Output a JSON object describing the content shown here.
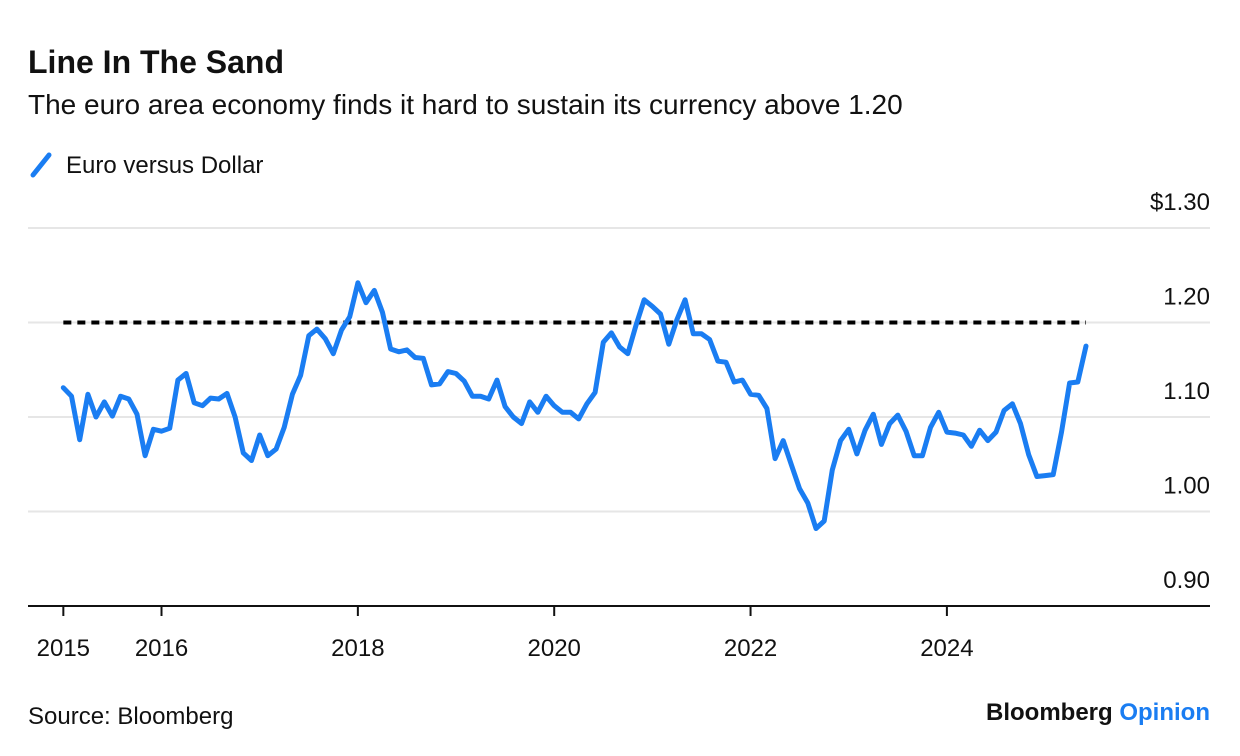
{
  "chart_data": {
    "type": "line",
    "title": "Line In The Sand",
    "subtitle": "The euro area economy finds it hard to sustain its currency above 1.20",
    "source": "Source: Bloomberg",
    "brand": [
      "Bloomberg",
      "Opinion"
    ],
    "x": [
      2015,
      2015.083,
      2015.167,
      2015.25,
      2015.333,
      2015.417,
      2015.5,
      2015.583,
      2015.667,
      2015.75,
      2015.833,
      2015.917,
      2016,
      2016.083,
      2016.167,
      2016.25,
      2016.333,
      2016.417,
      2016.5,
      2016.583,
      2016.667,
      2016.75,
      2016.833,
      2016.917,
      2017,
      2017.083,
      2017.167,
      2017.25,
      2017.333,
      2017.417,
      2017.5,
      2017.583,
      2017.667,
      2017.75,
      2017.833,
      2017.917,
      2018,
      2018.083,
      2018.167,
      2018.25,
      2018.333,
      2018.417,
      2018.5,
      2018.583,
      2018.667,
      2018.75,
      2018.833,
      2018.917,
      2019,
      2019.083,
      2019.167,
      2019.25,
      2019.333,
      2019.417,
      2019.5,
      2019.583,
      2019.667,
      2019.75,
      2019.833,
      2019.917,
      2020,
      2020.083,
      2020.167,
      2020.25,
      2020.333,
      2020.417,
      2020.5,
      2020.583,
      2020.667,
      2020.75,
      2020.833,
      2020.917,
      2021,
      2021.083,
      2021.167,
      2021.25,
      2021.333,
      2021.417,
      2021.5,
      2021.583,
      2021.667,
      2021.75,
      2021.833,
      2021.917,
      2022,
      2022.083,
      2022.167,
      2022.25,
      2022.333,
      2022.417,
      2022.5,
      2022.583,
      2022.667,
      2022.75,
      2022.833,
      2022.917,
      2023,
      2023.083,
      2023.167,
      2023.25,
      2023.333,
      2023.417,
      2023.5,
      2023.583,
      2023.667,
      2023.75,
      2023.833,
      2023.917,
      2024,
      2024.083,
      2024.167,
      2024.25,
      2024.333,
      2024.417,
      2024.5,
      2024.583,
      2024.667,
      2024.75,
      2024.833,
      2024.917,
      2025,
      2025.083,
      2025.167,
      2025.25,
      2025.333,
      2025.417
    ],
    "series": [
      {
        "name": "Euro versus Dollar",
        "color": "#1a7df2",
        "values": [
          1.131,
          1.122,
          1.076,
          1.124,
          1.1,
          1.116,
          1.101,
          1.122,
          1.119,
          1.103,
          1.059,
          1.087,
          1.085,
          1.088,
          1.139,
          1.146,
          1.115,
          1.112,
          1.12,
          1.119,
          1.125,
          1.1,
          1.062,
          1.054,
          1.081,
          1.059,
          1.066,
          1.089,
          1.124,
          1.144,
          1.186,
          1.193,
          1.183,
          1.167,
          1.192,
          1.206,
          1.242,
          1.221,
          1.234,
          1.211,
          1.172,
          1.169,
          1.171,
          1.163,
          1.162,
          1.134,
          1.135,
          1.148,
          1.146,
          1.138,
          1.122,
          1.122,
          1.119,
          1.139,
          1.111,
          1.1,
          1.093,
          1.116,
          1.105,
          1.122,
          1.112,
          1.105,
          1.105,
          1.098,
          1.114,
          1.126,
          1.179,
          1.189,
          1.174,
          1.167,
          1.197,
          1.224,
          1.217,
          1.209,
          1.177,
          1.203,
          1.224,
          1.188,
          1.188,
          1.182,
          1.159,
          1.158,
          1.137,
          1.139,
          1.124,
          1.123,
          1.109,
          1.056,
          1.075,
          1.049,
          1.024,
          1.009,
          0.982,
          0.99,
          1.044,
          1.075,
          1.087,
          1.061,
          1.086,
          1.103,
          1.071,
          1.093,
          1.102,
          1.085,
          1.059,
          1.059,
          1.089,
          1.105,
          1.084,
          1.083,
          1.081,
          1.069,
          1.086,
          1.075,
          1.084,
          1.107,
          1.114,
          1.093,
          1.06,
          1.037,
          1.038,
          1.039,
          1.084,
          1.136,
          1.137,
          1.175
        ]
      }
    ],
    "reference_line": {
      "value": 1.2,
      "xlim": [
        2015,
        2025.417
      ],
      "color": "#000000"
    },
    "xlim": [
      2014.64,
      2026.68
    ],
    "xticks": [
      2015,
      2016,
      2018,
      2020,
      2022,
      2024
    ],
    "ylim": [
      0.9,
      1.3
    ],
    "yticks": [
      {
        "value": 0.9,
        "label": "0.90"
      },
      {
        "value": 1.0,
        "label": "1.00"
      },
      {
        "value": 1.1,
        "label": "1.10"
      },
      {
        "value": 1.2,
        "label": "1.20"
      },
      {
        "value": 1.3,
        "label": "$1.30"
      }
    ],
    "grid": true
  }
}
